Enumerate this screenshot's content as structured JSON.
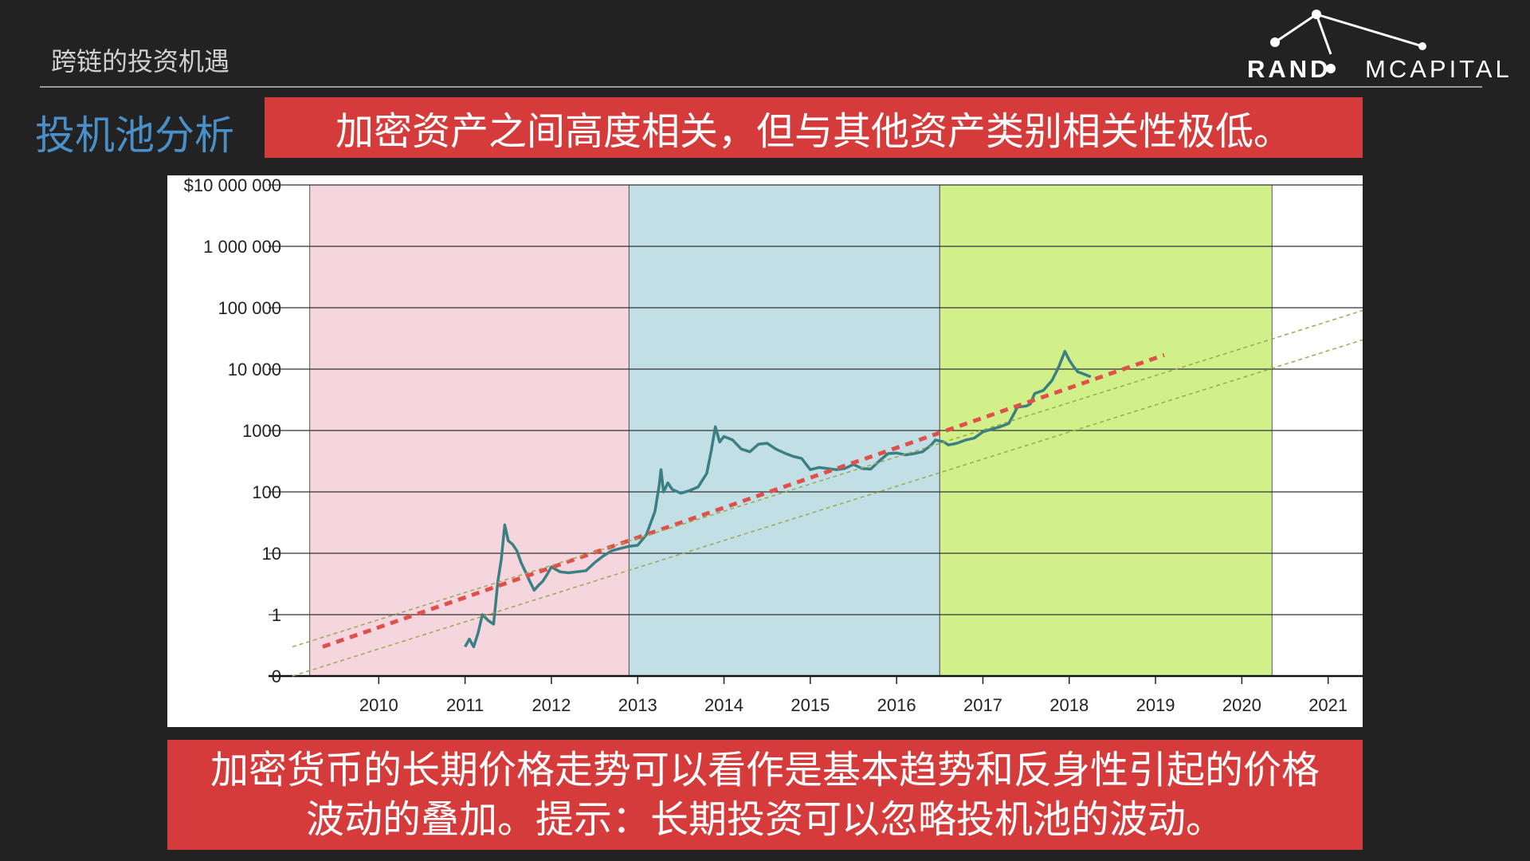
{
  "header": {
    "title": "跨链的投资机遇"
  },
  "logo": {
    "left": "RAND",
    "right": "MCAPITAL"
  },
  "section_label": "投机池分析",
  "headline": "加密资产之间高度相关，但与其他资产类别相关性极低。",
  "footer": {
    "line1": "加密货币的长期价格走势可以看作是基本趋势和反身性引起的价格",
    "line2": "波动的叠加。提示：长期投资可以忽略投机池的波动。"
  },
  "colors": {
    "background": "#222222",
    "accent_red": "#d63b3b",
    "section_blue": "#4a90c8",
    "band_pink": "#f5d5de",
    "band_blue": "#c2dfe5",
    "band_green": "#d2f08a",
    "price_line": "#3a7f82",
    "trend_line": "#e0504a",
    "channel_line": "#9aaa50"
  },
  "chart_data": {
    "type": "line",
    "y_scale": "log",
    "y_ticks": [
      {
        "value": 0.1,
        "label": "0"
      },
      {
        "value": 1,
        "label": "1"
      },
      {
        "value": 10,
        "label": "10"
      },
      {
        "value": 100,
        "label": "100"
      },
      {
        "value": 1000,
        "label": "1000"
      },
      {
        "value": 10000,
        "label": "10 000"
      },
      {
        "value": 100000,
        "label": "100 000"
      },
      {
        "value": 1000000,
        "label": "1 000 000"
      },
      {
        "value": 10000000,
        "label": "$10 000 000"
      }
    ],
    "x_ticks": [
      2010,
      2011,
      2012,
      2013,
      2014,
      2015,
      2016,
      2017,
      2018,
      2019,
      2020,
      2021
    ],
    "xlim": [
      2009.0,
      2021.4
    ],
    "ylim": [
      0.1,
      10000000
    ],
    "grid": true,
    "bands": [
      {
        "x0": 2009.2,
        "x1": 2012.9,
        "color": "#f5d5de"
      },
      {
        "x0": 2012.9,
        "x1": 2016.5,
        "color": "#c2dfe5"
      },
      {
        "x0": 2016.5,
        "x1": 2020.35,
        "color": "#d2f08a"
      }
    ],
    "series": [
      {
        "kind": "price",
        "points": [
          [
            2011.0,
            0.3
          ],
          [
            2011.05,
            0.4
          ],
          [
            2011.1,
            0.3
          ],
          [
            2011.15,
            0.5
          ],
          [
            2011.2,
            1.0
          ],
          [
            2011.27,
            0.8
          ],
          [
            2011.33,
            0.7
          ],
          [
            2011.38,
            3.5
          ],
          [
            2011.42,
            8.0
          ],
          [
            2011.46,
            29.0
          ],
          [
            2011.5,
            16.0
          ],
          [
            2011.55,
            14.0
          ],
          [
            2011.6,
            11.0
          ],
          [
            2011.65,
            7.0
          ],
          [
            2011.7,
            5.0
          ],
          [
            2011.75,
            3.5
          ],
          [
            2011.8,
            2.5
          ],
          [
            2011.85,
            3.0
          ],
          [
            2011.9,
            3.5
          ],
          [
            2011.95,
            4.5
          ],
          [
            2012.0,
            6.0
          ],
          [
            2012.1,
            5.0
          ],
          [
            2012.2,
            4.8
          ],
          [
            2012.3,
            5.0
          ],
          [
            2012.4,
            5.2
          ],
          [
            2012.5,
            7.0
          ],
          [
            2012.6,
            9.0
          ],
          [
            2012.7,
            11.0
          ],
          [
            2012.8,
            12.0
          ],
          [
            2012.9,
            13.0
          ],
          [
            2013.0,
            13.5
          ],
          [
            2013.1,
            20.0
          ],
          [
            2013.2,
            48.0
          ],
          [
            2013.25,
            130.0
          ],
          [
            2013.27,
            230.0
          ],
          [
            2013.3,
            100.0
          ],
          [
            2013.35,
            140.0
          ],
          [
            2013.4,
            110.0
          ],
          [
            2013.5,
            95.0
          ],
          [
            2013.6,
            105.0
          ],
          [
            2013.7,
            120.0
          ],
          [
            2013.8,
            200.0
          ],
          [
            2013.85,
            450.0
          ],
          [
            2013.9,
            1150.0
          ],
          [
            2013.95,
            650.0
          ],
          [
            2014.0,
            800.0
          ],
          [
            2014.1,
            700.0
          ],
          [
            2014.2,
            500.0
          ],
          [
            2014.3,
            450.0
          ],
          [
            2014.4,
            600.0
          ],
          [
            2014.5,
            620.0
          ],
          [
            2014.6,
            500.0
          ],
          [
            2014.7,
            430.0
          ],
          [
            2014.8,
            380.0
          ],
          [
            2014.9,
            350.0
          ],
          [
            2015.0,
            230.0
          ],
          [
            2015.1,
            250.0
          ],
          [
            2015.2,
            240.0
          ],
          [
            2015.3,
            230.0
          ],
          [
            2015.4,
            240.0
          ],
          [
            2015.5,
            280.0
          ],
          [
            2015.6,
            240.0
          ],
          [
            2015.7,
            235.0
          ],
          [
            2015.8,
            320.0
          ],
          [
            2015.9,
            420.0
          ],
          [
            2016.0,
            430.0
          ],
          [
            2016.1,
            400.0
          ],
          [
            2016.2,
            420.0
          ],
          [
            2016.3,
            450.0
          ],
          [
            2016.4,
            580.0
          ],
          [
            2016.45,
            700.0
          ],
          [
            2016.55,
            650.0
          ],
          [
            2016.6,
            580.0
          ],
          [
            2016.7,
            620.0
          ],
          [
            2016.8,
            700.0
          ],
          [
            2016.9,
            750.0
          ],
          [
            2017.0,
            950.0
          ],
          [
            2017.1,
            1050.0
          ],
          [
            2017.2,
            1150.0
          ],
          [
            2017.3,
            1300.0
          ],
          [
            2017.4,
            2400.0
          ],
          [
            2017.5,
            2500.0
          ],
          [
            2017.55,
            2700.0
          ],
          [
            2017.6,
            4000.0
          ],
          [
            2017.7,
            4500.0
          ],
          [
            2017.8,
            6500.0
          ],
          [
            2017.88,
            11000.0
          ],
          [
            2017.95,
            19500.0
          ],
          [
            2018.0,
            14000.0
          ],
          [
            2018.05,
            11000.0
          ],
          [
            2018.1,
            9000.0
          ],
          [
            2018.15,
            8500.0
          ],
          [
            2018.2,
            8000.0
          ],
          [
            2018.25,
            7500.0
          ]
        ]
      },
      {
        "kind": "trend",
        "points": [
          [
            2009.35,
            0.3
          ],
          [
            2019.1,
            17000.0
          ]
        ]
      },
      {
        "kind": "channel-upper",
        "points": [
          [
            2009.0,
            0.3
          ],
          [
            2021.4,
            90000.0
          ]
        ]
      },
      {
        "kind": "channel-lower",
        "points": [
          [
            2009.0,
            0.1
          ],
          [
            2021.4,
            30000.0
          ]
        ]
      }
    ]
  }
}
